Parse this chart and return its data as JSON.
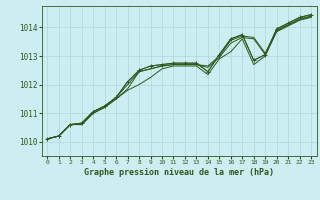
{
  "bg_color": "#cceef2",
  "grid_color": "#aad8dc",
  "line_color": "#2d5a1b",
  "title": "Graphe pression niveau de la mer (hPa)",
  "xlim": [
    -0.5,
    23.5
  ],
  "ylim": [
    1009.5,
    1014.75
  ],
  "yticks": [
    1010,
    1011,
    1012,
    1013,
    1014
  ],
  "xticks": [
    0,
    1,
    2,
    3,
    4,
    5,
    6,
    7,
    8,
    9,
    10,
    11,
    12,
    13,
    14,
    15,
    16,
    17,
    18,
    19,
    20,
    21,
    22,
    23
  ],
  "series": {
    "s1": [
      1010.1,
      1010.2,
      1010.6,
      1010.6,
      1011.0,
      1011.2,
      1011.5,
      1011.8,
      1012.0,
      1012.25,
      1012.55,
      1012.65,
      1012.65,
      1012.65,
      1012.35,
      1012.9,
      1013.15,
      1013.6,
      1012.7,
      1013.0,
      1013.85,
      1014.05,
      1014.25,
      1014.35
    ],
    "s2": [
      1010.1,
      1010.2,
      1010.6,
      1010.6,
      1011.0,
      1011.2,
      1011.5,
      1011.85,
      1012.45,
      1012.55,
      1012.65,
      1012.7,
      1012.7,
      1012.7,
      1012.6,
      1012.95,
      1013.45,
      1013.65,
      1013.6,
      1013.05,
      1013.88,
      1014.08,
      1014.28,
      1014.38
    ],
    "s3": [
      1010.1,
      1010.2,
      1010.6,
      1010.65,
      1011.05,
      1011.25,
      1011.55,
      1012.0,
      1012.45,
      1012.55,
      1012.65,
      1012.7,
      1012.7,
      1012.7,
      1012.65,
      1013.0,
      1013.55,
      1013.7,
      1013.65,
      1013.1,
      1013.9,
      1014.1,
      1014.3,
      1014.4
    ],
    "s4": [
      1010.1,
      1010.2,
      1010.6,
      1010.65,
      1011.05,
      1011.25,
      1011.55,
      1012.1,
      1012.5,
      1012.65,
      1012.7,
      1012.75,
      1012.75,
      1012.75,
      1012.45,
      1013.05,
      1013.6,
      1013.75,
      1012.85,
      1013.05,
      1013.95,
      1014.15,
      1014.35,
      1014.45
    ],
    "marker": [
      1010.1,
      1010.2,
      1010.6,
      1010.65,
      1011.05,
      1011.25,
      1011.55,
      1012.1,
      1012.5,
      1012.65,
      1012.7,
      1012.75,
      1012.75,
      1012.75,
      1012.45,
      1013.05,
      1013.6,
      1013.75,
      1012.85,
      1013.05,
      1013.95,
      1014.15,
      1014.35,
      1014.45
    ]
  }
}
